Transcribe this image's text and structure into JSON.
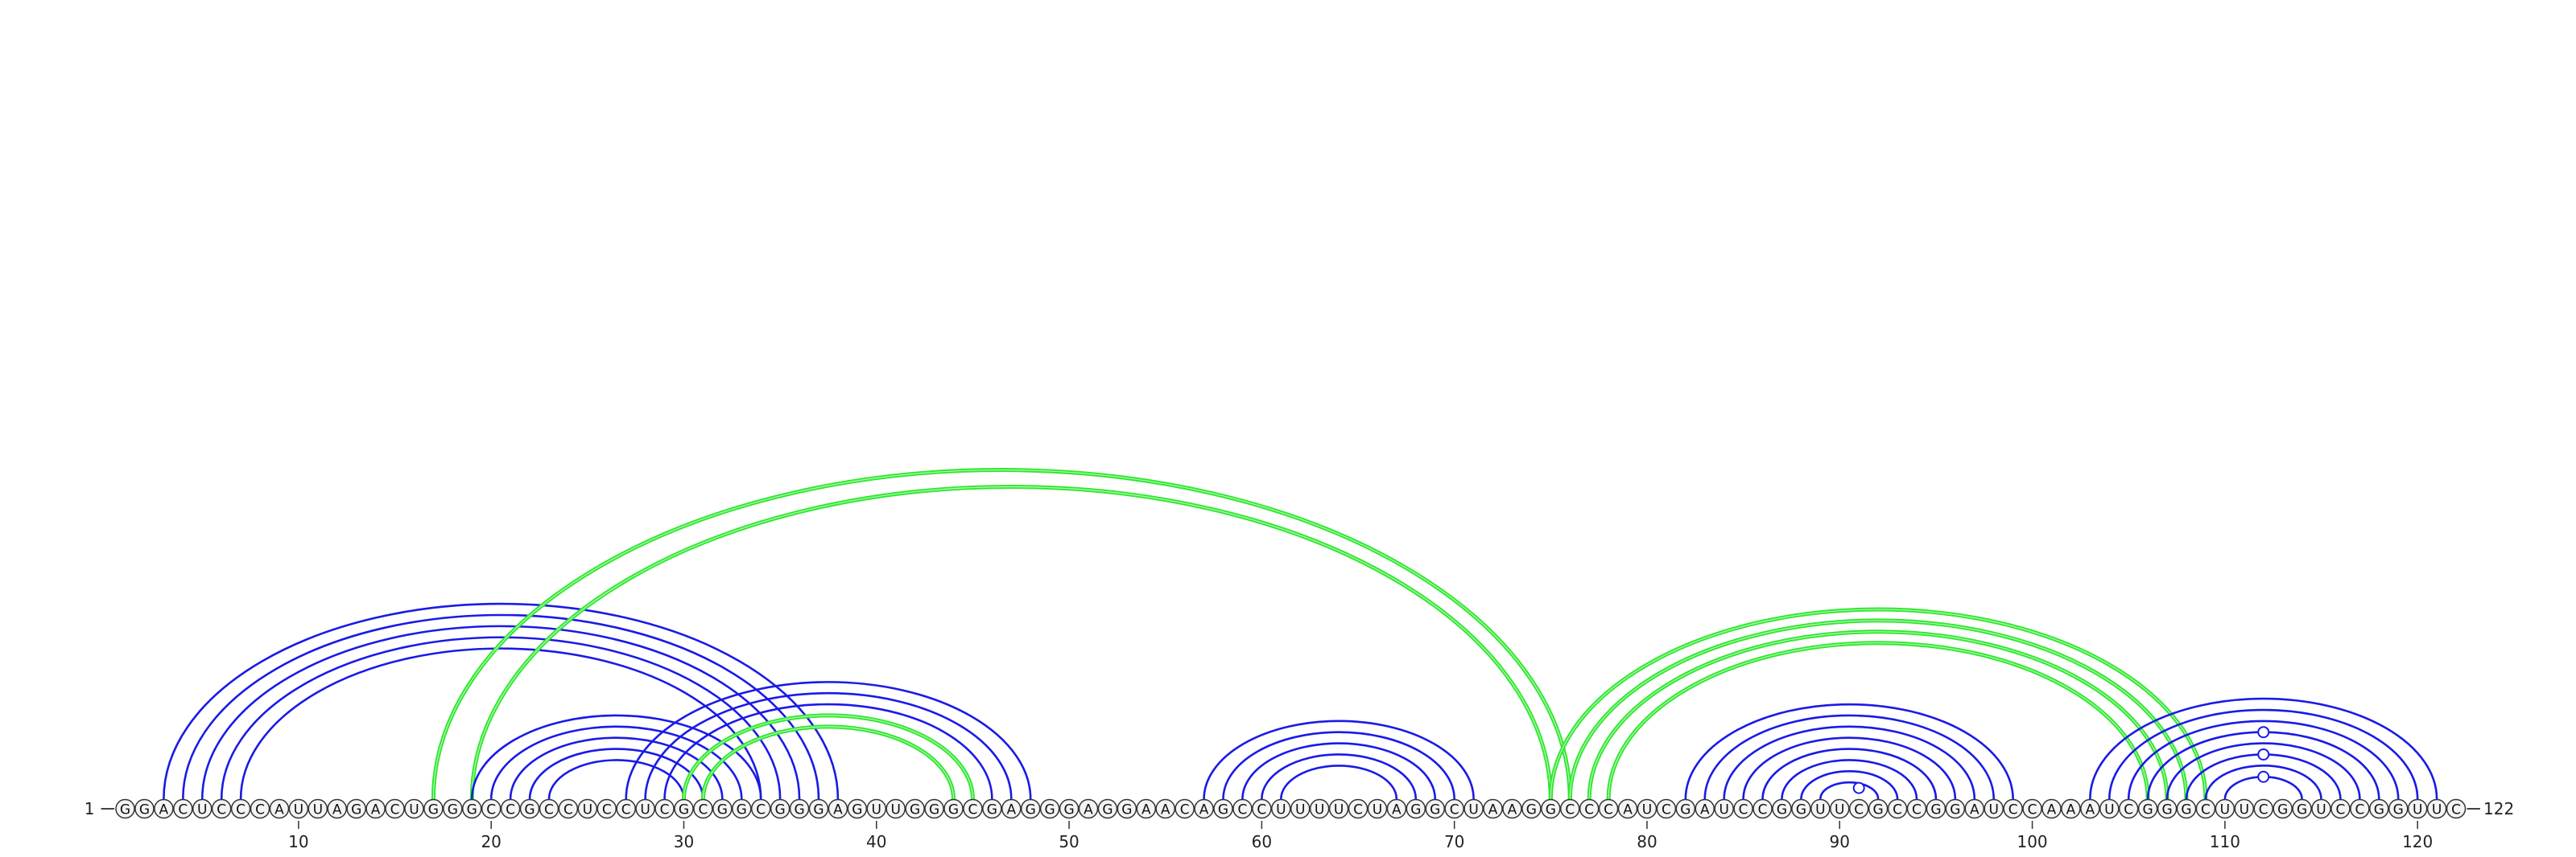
{
  "diagram": {
    "type": "arc-diagram",
    "sequence": "GGACUCCCAUUAGACUGGGCCGCCUCCUCGCGGCGGGAGUUGGGCGAGGGAGGAACAGCCUUUUCUAGGCUAAGGCCCAUCGAUCCGGUUCGCCGGAUCCAAAUCGGGCUUCGGUCCGGUUC",
    "start_label": "1",
    "end_label": "122",
    "ticks": [
      10,
      20,
      30,
      40,
      50,
      60,
      70,
      80,
      90,
      100,
      110,
      120
    ],
    "colors": {
      "blue": "#1a1ae6",
      "green": "#2ee82e",
      "node_stroke": "#333333",
      "axis": "#444444"
    },
    "arcs": [
      {
        "i": 3,
        "j": 38,
        "color": "blue"
      },
      {
        "i": 4,
        "j": 37,
        "color": "blue"
      },
      {
        "i": 5,
        "j": 36,
        "color": "blue"
      },
      {
        "i": 6,
        "j": 35,
        "color": "blue"
      },
      {
        "i": 7,
        "j": 34,
        "color": "blue"
      },
      {
        "i": 17,
        "j": 76,
        "color": "green"
      },
      {
        "i": 19,
        "j": 75,
        "color": "green"
      },
      {
        "i": 19,
        "j": 34,
        "color": "blue"
      },
      {
        "i": 20,
        "j": 33,
        "color": "blue"
      },
      {
        "i": 21,
        "j": 32,
        "color": "blue"
      },
      {
        "i": 22,
        "j": 31,
        "color": "blue"
      },
      {
        "i": 23,
        "j": 30,
        "color": "blue"
      },
      {
        "i": 27,
        "j": 48,
        "color": "blue"
      },
      {
        "i": 28,
        "j": 47,
        "color": "blue"
      },
      {
        "i": 29,
        "j": 46,
        "color": "blue"
      },
      {
        "i": 30,
        "j": 45,
        "color": "blue"
      },
      {
        "i": 30,
        "j": 45,
        "color": "green"
      },
      {
        "i": 31,
        "j": 44,
        "color": "green"
      },
      {
        "i": 57,
        "j": 71,
        "color": "blue"
      },
      {
        "i": 58,
        "j": 70,
        "color": "blue"
      },
      {
        "i": 59,
        "j": 69,
        "color": "blue"
      },
      {
        "i": 60,
        "j": 68,
        "color": "blue"
      },
      {
        "i": 61,
        "j": 67,
        "color": "blue"
      },
      {
        "i": 75,
        "j": 109,
        "color": "green"
      },
      {
        "i": 76,
        "j": 108,
        "color": "green"
      },
      {
        "i": 77,
        "j": 107,
        "color": "green"
      },
      {
        "i": 78,
        "j": 106,
        "color": "green"
      },
      {
        "i": 82,
        "j": 99,
        "color": "blue"
      },
      {
        "i": 83,
        "j": 98,
        "color": "blue"
      },
      {
        "i": 84,
        "j": 97,
        "color": "blue"
      },
      {
        "i": 85,
        "j": 96,
        "color": "blue"
      },
      {
        "i": 86,
        "j": 95,
        "color": "blue"
      },
      {
        "i": 87,
        "j": 94,
        "color": "blue"
      },
      {
        "i": 88,
        "j": 93,
        "color": "blue"
      },
      {
        "i": 89,
        "j": 92,
        "color": "blue"
      },
      {
        "i": 103,
        "j": 121,
        "color": "blue"
      },
      {
        "i": 104,
        "j": 120,
        "color": "blue"
      },
      {
        "i": 105,
        "j": 119,
        "color": "blue"
      },
      {
        "i": 106,
        "j": 118,
        "color": "blue"
      },
      {
        "i": 107,
        "j": 117,
        "color": "blue"
      },
      {
        "i": 108,
        "j": 116,
        "color": "blue"
      },
      {
        "i": 109,
        "j": 115,
        "color": "blue"
      },
      {
        "i": 110,
        "j": 114,
        "color": "blue"
      }
    ],
    "markers": [
      {
        "i": 90,
        "j": 92
      },
      {
        "i": 110,
        "j": 114
      },
      {
        "i": 108,
        "j": 116
      },
      {
        "i": 106,
        "j": 118
      }
    ]
  }
}
